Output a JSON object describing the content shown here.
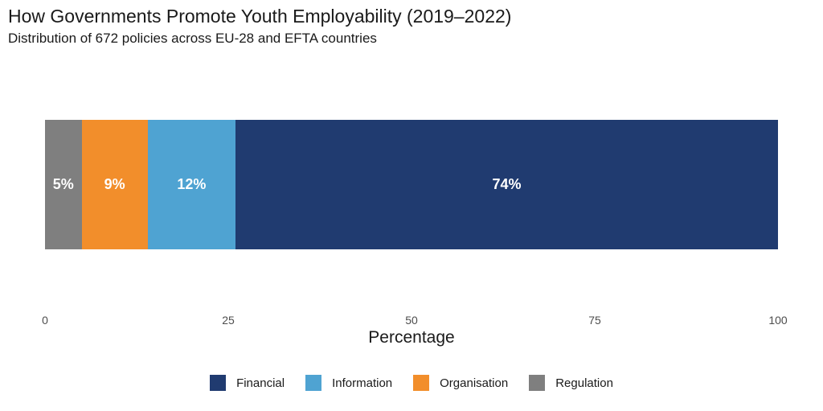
{
  "header": {
    "title": "How Governments Promote Youth Employability (2019–2022)",
    "subtitle": "Distribution of 672 policies across EU-28 and EFTA countries"
  },
  "chart_data": {
    "type": "bar",
    "subtype": "horizontal-stacked",
    "title": "How Governments Promote Youth Employability (2019–2022)",
    "subtitle": "Distribution of 672 policies across EU-28 and EFTA countries",
    "xlabel": "Percentage",
    "xlim": [
      0,
      100
    ],
    "x_ticks": [
      0,
      25,
      50,
      75,
      100
    ],
    "grid": false,
    "legend_position": "bottom",
    "total_policies": 672,
    "segments": [
      {
        "category": "Regulation",
        "value": 5,
        "label": "5%",
        "color": "#7f7f7f"
      },
      {
        "category": "Organisation",
        "value": 9,
        "label": "9%",
        "color": "#f28e2b"
      },
      {
        "category": "Information",
        "value": 12,
        "label": "12%",
        "color": "#4fa3d2"
      },
      {
        "category": "Financial",
        "value": 74,
        "label": "74%",
        "color": "#203b70"
      }
    ],
    "legend": [
      {
        "label": "Financial",
        "color": "#203b70"
      },
      {
        "label": "Information",
        "color": "#4fa3d2"
      },
      {
        "label": "Organisation",
        "color": "#f28e2b"
      },
      {
        "label": "Regulation",
        "color": "#7f7f7f"
      }
    ]
  }
}
